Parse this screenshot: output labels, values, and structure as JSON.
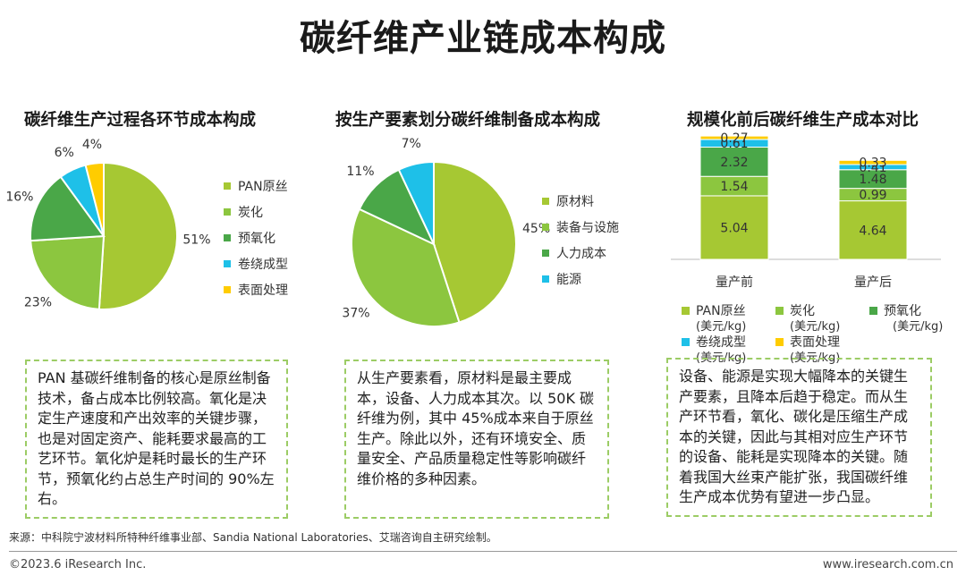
{
  "title": "碳纤维产业链成本构成",
  "chart_data": [
    {
      "type": "pie",
      "title": "碳纤维生产过程各环节成本构成",
      "legend_position": "right",
      "slices": [
        {
          "label": "PAN原丝",
          "value": 51,
          "value_label": "51%",
          "color": "#a6c833"
        },
        {
          "label": "炭化",
          "value": 23,
          "value_label": "23%",
          "color": "#8cc63f"
        },
        {
          "label": "预氧化",
          "value": 16,
          "value_label": "16%",
          "color": "#4aa748"
        },
        {
          "label": "卷绕成型",
          "value": 6,
          "value_label": "6%",
          "color": "#1ec0e8"
        },
        {
          "label": "表面处理",
          "value": 4,
          "value_label": "4%",
          "color": "#ffcc00"
        }
      ]
    },
    {
      "type": "pie",
      "title": "按生产要素划分碳纤维制备成本构成",
      "legend_position": "right",
      "slices": [
        {
          "label": "原材料",
          "value": 45,
          "value_label": "45%",
          "color": "#a6c833"
        },
        {
          "label": "装备与设施",
          "value": 37,
          "value_label": "37%",
          "color": "#8cc63f"
        },
        {
          "label": "人力成本",
          "value": 11,
          "value_label": "11%",
          "color": "#4aa748"
        },
        {
          "label": "能源",
          "value": 7,
          "value_label": "7%",
          "color": "#1ec0e8"
        }
      ]
    },
    {
      "type": "bar",
      "stacked": true,
      "title": "规模化前后碳纤维生产成本对比",
      "categories": [
        "量产前",
        "量产后"
      ],
      "legend_position": "bottom",
      "series": [
        {
          "name": "PAN原丝",
          "unit": "(美元/kg)",
          "values": [
            5.04,
            4.64
          ],
          "labels": [
            "5.04",
            "4.64"
          ],
          "color": "#a6c833"
        },
        {
          "name": "炭化",
          "unit": "(美元/kg)",
          "values": [
            1.54,
            0.99
          ],
          "labels": [
            "1.54",
            "0.99"
          ],
          "color": "#8cc63f"
        },
        {
          "name": "预氧化",
          "unit": "(美元/kg)",
          "values": [
            2.32,
            1.48
          ],
          "labels": [
            "2.32",
            "1.48"
          ],
          "color": "#4aa748"
        },
        {
          "name": "卷绕成型",
          "unit": "(美元/kg)",
          "values": [
            0.61,
            0.41
          ],
          "labels": [
            "0.61",
            "0.41"
          ],
          "color": "#1ec0e8"
        },
        {
          "name": "表面处理",
          "unit": "(美元/kg)",
          "values": [
            0.27,
            0.33
          ],
          "labels": [
            "0.27",
            "0.33"
          ],
          "color": "#ffcc00"
        }
      ]
    }
  ],
  "notes": [
    "PAN 基碳纤维制备的核心是原丝制备技术，备占成本比例较高。氧化是决定生产速度和产出效率的关键步骤，也是对固定资产、能耗要求最高的工艺环节。氧化炉是耗时最长的生产环节，预氧化约占总生产时间的 90%左右。",
    "从生产要素看，原材料是最主要成本，设备、人力成本其次。以 50K 碳纤维为例，其中 45%成本来自于原丝生产。除此以外，还有环境安全、质量安全、产品质量稳定性等影响碳纤维价格的多种因素。",
    "设备、能源是实现大幅降本的关键生产要素，且降本后趋于稳定。而从生产环节看，氧化、碳化是压缩生产成本的关键，因此与其相对应生产环节的设备、能耗是实现降本的关键。随着我国大丝束产能扩张，我国碳纤维生产成本优势有望进一步凸显。"
  ],
  "source": "来源：中科院宁波材料所特种纤维事业部、Sandia National Laboratories、艾瑞咨询自主研究绘制。",
  "copyright": "©2023.6 iResearch Inc.",
  "website": "www.iresearch.com.cn"
}
